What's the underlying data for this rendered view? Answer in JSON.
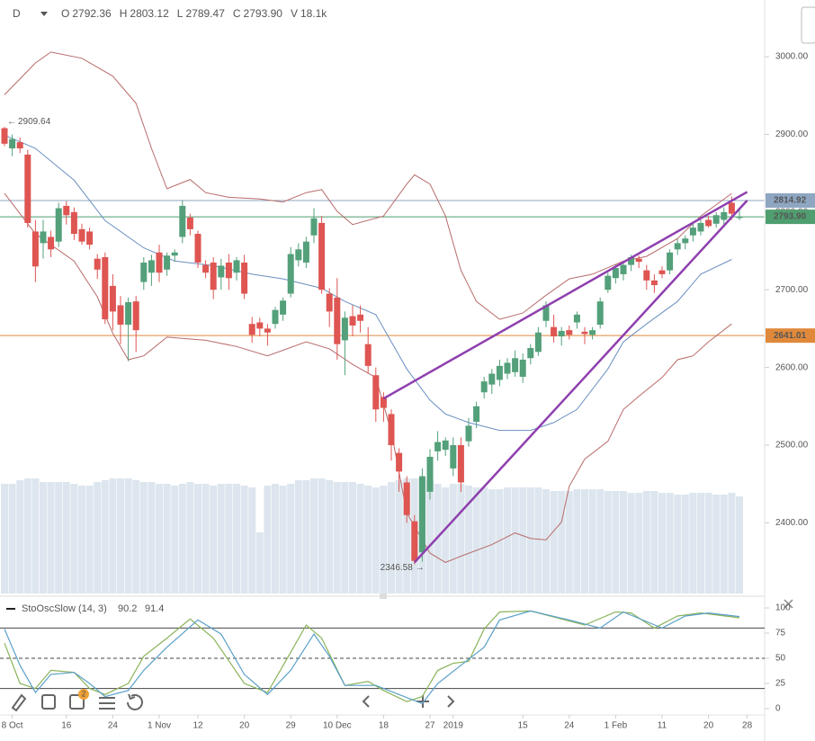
{
  "header": {
    "timeframe": "D",
    "fields": [
      {
        "key": "O",
        "value": "2792.36"
      },
      {
        "key": "H",
        "value": "2803.12"
      },
      {
        "key": "L",
        "value": "2789.47"
      },
      {
        "key": "C",
        "value": "2793.90"
      },
      {
        "key": "V",
        "value": "18.1k"
      }
    ]
  },
  "toolbar": {
    "badge": "2"
  },
  "chart_data": {
    "type": "candlestick",
    "up_color": "#53a07a",
    "down_color": "#de5552",
    "volume_color": "#dde6ee",
    "ylim": [
      2309,
      3073
    ],
    "yticks": [
      {
        "value": 2400,
        "label": "2400.00"
      },
      {
        "value": 2500,
        "label": "2500.00"
      },
      {
        "value": 2600,
        "label": "2600.00"
      },
      {
        "value": 2700,
        "label": "2700.00"
      },
      {
        "value": 2800,
        "label": "2800.00"
      },
      {
        "value": 2900,
        "label": "2900.00"
      },
      {
        "value": 3000,
        "label": "3000.00"
      }
    ],
    "xticks": [
      {
        "value": 1,
        "label": "8 Oct"
      },
      {
        "value": 8,
        "label": "16"
      },
      {
        "value": 14,
        "label": "24"
      },
      {
        "value": 20,
        "label": "1 Nov"
      },
      {
        "value": 25,
        "label": "12"
      },
      {
        "value": 31,
        "label": "20"
      },
      {
        "value": 37,
        "label": "29"
      },
      {
        "value": 43,
        "label": "10 Dec"
      },
      {
        "value": 49,
        "label": "18"
      },
      {
        "value": 55,
        "label": "27"
      },
      {
        "value": 58,
        "label": "2019"
      },
      {
        "value": 67,
        "label": "15"
      },
      {
        "value": 73,
        "label": "24"
      },
      {
        "value": 79,
        "label": "1 Feb"
      },
      {
        "value": 85,
        "label": "11"
      },
      {
        "value": 91,
        "label": "20"
      },
      {
        "value": 96,
        "label": "28"
      }
    ],
    "ohlc": [
      [
        2908,
        2909.64,
        2885,
        2888
      ],
      [
        2882,
        2900,
        2872,
        2894
      ],
      [
        2890,
        2896,
        2876,
        2882
      ],
      [
        2874,
        2880,
        2780,
        2786
      ],
      [
        2775,
        2790,
        2710,
        2730
      ],
      [
        2760,
        2790,
        2740,
        2775
      ],
      [
        2768,
        2776,
        2742,
        2752
      ],
      [
        2762,
        2812,
        2755,
        2805
      ],
      [
        2808,
        2814,
        2784,
        2796
      ],
      [
        2800,
        2806,
        2764,
        2772
      ],
      [
        2778,
        2785,
        2758,
        2762
      ],
      [
        2775,
        2780,
        2752,
        2758
      ],
      [
        2740,
        2746,
        2714,
        2726
      ],
      [
        2742,
        2748,
        2656,
        2662
      ],
      [
        2705,
        2720,
        2648,
        2672
      ],
      [
        2680,
        2692,
        2630,
        2655
      ],
      [
        2655,
        2690,
        2608,
        2684
      ],
      [
        2685,
        2692,
        2620,
        2648
      ],
      [
        2710,
        2742,
        2700,
        2735
      ],
      [
        2722,
        2745,
        2705,
        2738
      ],
      [
        2748,
        2758,
        2710,
        2722
      ],
      [
        2726,
        2748,
        2718,
        2744
      ],
      [
        2744,
        2752,
        2736,
        2748
      ],
      [
        2768,
        2815,
        2760,
        2808
      ],
      [
        2793,
        2798,
        2770,
        2778
      ],
      [
        2772,
        2776,
        2728,
        2735
      ],
      [
        2732,
        2738,
        2715,
        2722
      ],
      [
        2735,
        2742,
        2688,
        2700
      ],
      [
        2716,
        2740,
        2700,
        2731
      ],
      [
        2735,
        2746,
        2700,
        2715
      ],
      [
        2722,
        2742,
        2712,
        2738
      ],
      [
        2735,
        2745,
        2688,
        2695
      ],
      [
        2656,
        2665,
        2632,
        2642
      ],
      [
        2658,
        2664,
        2640,
        2650
      ],
      [
        2650,
        2656,
        2628,
        2645
      ],
      [
        2656,
        2678,
        2650,
        2674
      ],
      [
        2668,
        2690,
        2660,
        2686
      ],
      [
        2695,
        2755,
        2690,
        2746
      ],
      [
        2738,
        2760,
        2730,
        2752
      ],
      [
        2735,
        2768,
        2728,
        2762
      ],
      [
        2770,
        2805,
        2760,
        2792
      ],
      [
        2786,
        2795,
        2695,
        2700
      ],
      [
        2695,
        2702,
        2652,
        2672
      ],
      [
        2690,
        2715,
        2610,
        2630
      ],
      [
        2635,
        2672,
        2590,
        2664
      ],
      [
        2666,
        2680,
        2640,
        2654
      ],
      [
        2668,
        2680,
        2645,
        2660
      ],
      [
        2630,
        2652,
        2592,
        2602
      ],
      [
        2590,
        2600,
        2530,
        2546
      ],
      [
        2562,
        2568,
        2530,
        2548
      ],
      [
        2540,
        2546,
        2480,
        2500
      ],
      [
        2490,
        2496,
        2440,
        2466
      ],
      [
        2452,
        2460,
        2400,
        2410
      ],
      [
        2402,
        2410,
        2346.58,
        2351
      ],
      [
        2362,
        2470,
        2350,
        2460
      ],
      [
        2440,
        2495,
        2430,
        2485
      ],
      [
        2492,
        2518,
        2480,
        2504
      ],
      [
        2494,
        2510,
        2486,
        2506
      ],
      [
        2470,
        2510,
        2460,
        2500
      ],
      [
        2500,
        2510,
        2440,
        2452
      ],
      [
        2505,
        2535,
        2498,
        2525
      ],
      [
        2530,
        2556,
        2522,
        2550
      ],
      [
        2568,
        2588,
        2560,
        2582
      ],
      [
        2578,
        2598,
        2566,
        2592
      ],
      [
        2584,
        2610,
        2576,
        2602
      ],
      [
        2592,
        2612,
        2585,
        2606
      ],
      [
        2594,
        2622,
        2588,
        2612
      ],
      [
        2588,
        2618,
        2580,
        2610
      ],
      [
        2612,
        2630,
        2604,
        2625
      ],
      [
        2620,
        2652,
        2615,
        2645
      ],
      [
        2660,
        2685,
        2652,
        2680
      ],
      [
        2652,
        2668,
        2632,
        2640
      ],
      [
        2640,
        2652,
        2628,
        2647
      ],
      [
        2648,
        2654,
        2636,
        2642
      ],
      [
        2658,
        2672,
        2650,
        2668
      ],
      [
        2646,
        2652,
        2630,
        2643
      ],
      [
        2642,
        2652,
        2636,
        2648
      ],
      [
        2655,
        2690,
        2650,
        2685
      ],
      [
        2700,
        2722,
        2696,
        2718
      ],
      [
        2715,
        2732,
        2708,
        2728
      ],
      [
        2720,
        2736,
        2712,
        2732
      ],
      [
        2732,
        2745,
        2724,
        2742
      ],
      [
        2740,
        2744,
        2728,
        2736
      ],
      [
        2725,
        2732,
        2700,
        2712
      ],
      [
        2712,
        2720,
        2696,
        2706
      ],
      [
        2725,
        2730,
        2715,
        2720
      ],
      [
        2725,
        2752,
        2720,
        2748
      ],
      [
        2752,
        2766,
        2745,
        2760
      ],
      [
        2760,
        2770,
        2752,
        2766
      ],
      [
        2770,
        2785,
        2762,
        2780
      ],
      [
        2775,
        2790,
        2770,
        2786
      ],
      [
        2790,
        2795,
        2780,
        2782
      ],
      [
        2785,
        2800,
        2780,
        2796
      ],
      [
        2790,
        2806,
        2784,
        2800
      ],
      [
        2812,
        2820,
        2790,
        2798
      ],
      [
        2792.36,
        2803.12,
        2789.47,
        2793.9
      ]
    ],
    "volume_lim": [
      0,
      130
    ],
    "volume": [
      122,
      122,
      126,
      128,
      128,
      124,
      124,
      124,
      124,
      122,
      120,
      120,
      124,
      126,
      128,
      128,
      128,
      126,
      124,
      124,
      122,
      122,
      120,
      122,
      124,
      122,
      122,
      120,
      122,
      122,
      122,
      120,
      118,
      68,
      120,
      122,
      120,
      122,
      126,
      126,
      128,
      128,
      126,
      124,
      124,
      124,
      122,
      120,
      118,
      120,
      124,
      126,
      128,
      128,
      128,
      126,
      122,
      118,
      122,
      122,
      120,
      118,
      118,
      116,
      116,
      118,
      118,
      118,
      118,
      118,
      116,
      114,
      114,
      114,
      116,
      116,
      116,
      116,
      114,
      114,
      114,
      112,
      112,
      114,
      114,
      112,
      112,
      110,
      110,
      112,
      112,
      112,
      110,
      110,
      112,
      108
    ],
    "overlays": [
      {
        "color": "#b86a6a",
        "x": [
          0,
          4,
          6,
          10,
          14,
          17,
          19,
          21,
          24,
          26,
          29,
          33,
          36,
          39,
          41,
          43,
          45,
          49,
          52,
          53,
          55,
          57,
          59,
          61,
          64,
          67,
          70,
          73,
          76,
          80,
          83,
          87,
          90,
          94
        ],
        "values": [
          2951,
          2992,
          3006,
          2998,
          2975,
          2940,
          2882,
          2830,
          2842,
          2825,
          2819,
          2817,
          2813,
          2825,
          2829,
          2801,
          2784,
          2795,
          2836,
          2848,
          2836,
          2795,
          2725,
          2685,
          2662,
          2670,
          2693,
          2714,
          2720,
          2737,
          2743,
          2766,
          2795,
          2824
        ]
      },
      {
        "color": "#b86a6a",
        "x": [
          0,
          4,
          9,
          12,
          14,
          16,
          18,
          21,
          26,
          30,
          34,
          39,
          42,
          45,
          48,
          50,
          52,
          55,
          57,
          59,
          63,
          66,
          68,
          70,
          72,
          73,
          75,
          78,
          80,
          82,
          85,
          87,
          89,
          91,
          94
        ],
        "values": [
          2824,
          2772,
          2737,
          2691,
          2644,
          2610,
          2615,
          2639,
          2635,
          2627,
          2615,
          2633,
          2624,
          2604,
          2587,
          2517,
          2413,
          2361,
          2349,
          2357,
          2372,
          2387,
          2380,
          2378,
          2401,
          2447,
          2482,
          2505,
          2546,
          2563,
          2587,
          2610,
          2615,
          2633,
          2656
        ]
      },
      {
        "color": "#6b8fc0",
        "x": [
          0,
          4,
          9,
          13,
          18,
          22,
          27,
          32,
          36,
          41,
          44,
          48,
          50,
          52,
          55,
          57,
          60,
          64,
          68,
          71,
          74,
          78,
          80,
          83,
          87,
          90,
          94
        ],
        "values": [
          2899,
          2882,
          2841,
          2789,
          2754,
          2737,
          2731,
          2720,
          2714,
          2702,
          2685,
          2668,
          2633,
          2598,
          2558,
          2540,
          2529,
          2519,
          2519,
          2529,
          2546,
          2598,
          2633,
          2656,
          2685,
          2720,
          2739
        ]
      }
    ],
    "trendlines": [
      {
        "color": "#8e3fae",
        "x": [
          49,
          96
        ],
        "values": [
          2560,
          2826
        ]
      },
      {
        "color": "#8e3fae",
        "x": [
          53,
          96
        ],
        "values": [
          2349,
          2815
        ]
      }
    ],
    "hlines": [
      {
        "value": 2814.92,
        "label": "2814.92",
        "color": "#8ea6c1"
      },
      {
        "value": 2793.9,
        "label": "2793.90",
        "color": "#4f9e6f"
      },
      {
        "value": 2641.01,
        "label": "2641.01",
        "color": "#e0893a"
      }
    ],
    "oscillator": {
      "name": "StoOscSlow (14, 3)",
      "ylim": [
        0,
        100
      ],
      "yticks": [
        0,
        25,
        50,
        75,
        100
      ],
      "levels": [
        20,
        50,
        80
      ],
      "series": [
        {
          "color": "#8bb35a",
          "x": [
            0,
            2,
            4,
            6,
            9,
            11,
            13,
            16,
            18,
            21,
            24,
            27,
            31,
            34,
            37,
            39,
            41,
            44,
            47,
            49,
            52,
            54,
            56,
            58,
            60,
            62,
            64,
            68,
            72,
            75,
            79,
            81,
            84,
            87,
            90,
            95
          ],
          "values": [
            65,
            25,
            20,
            38,
            36,
            20,
            14,
            25,
            52,
            70,
            89,
            70,
            25,
            16,
            56,
            83,
            70,
            23,
            27,
            18,
            7,
            12,
            38,
            45,
            47,
            79,
            96,
            97,
            89,
            83,
            96,
            95,
            80,
            92,
            95,
            90.2
          ]
        },
        {
          "color": "#5aa0c8",
          "x": [
            0,
            2,
            4,
            6,
            9,
            11,
            13,
            16,
            18,
            21,
            25,
            28,
            31,
            34,
            37,
            40,
            42,
            44,
            48,
            51,
            54,
            56,
            59,
            62,
            64,
            68,
            73,
            77,
            80,
            85,
            88,
            91,
            95
          ],
          "values": [
            79,
            43,
            16,
            34,
            36,
            25,
            12,
            18,
            38,
            61,
            88,
            74,
            34,
            14,
            38,
            74,
            52,
            23,
            23,
            14,
            5,
            25,
            43,
            61,
            88,
            97,
            88,
            80,
            96,
            80,
            92,
            95,
            91.4
          ]
        }
      ]
    }
  }
}
